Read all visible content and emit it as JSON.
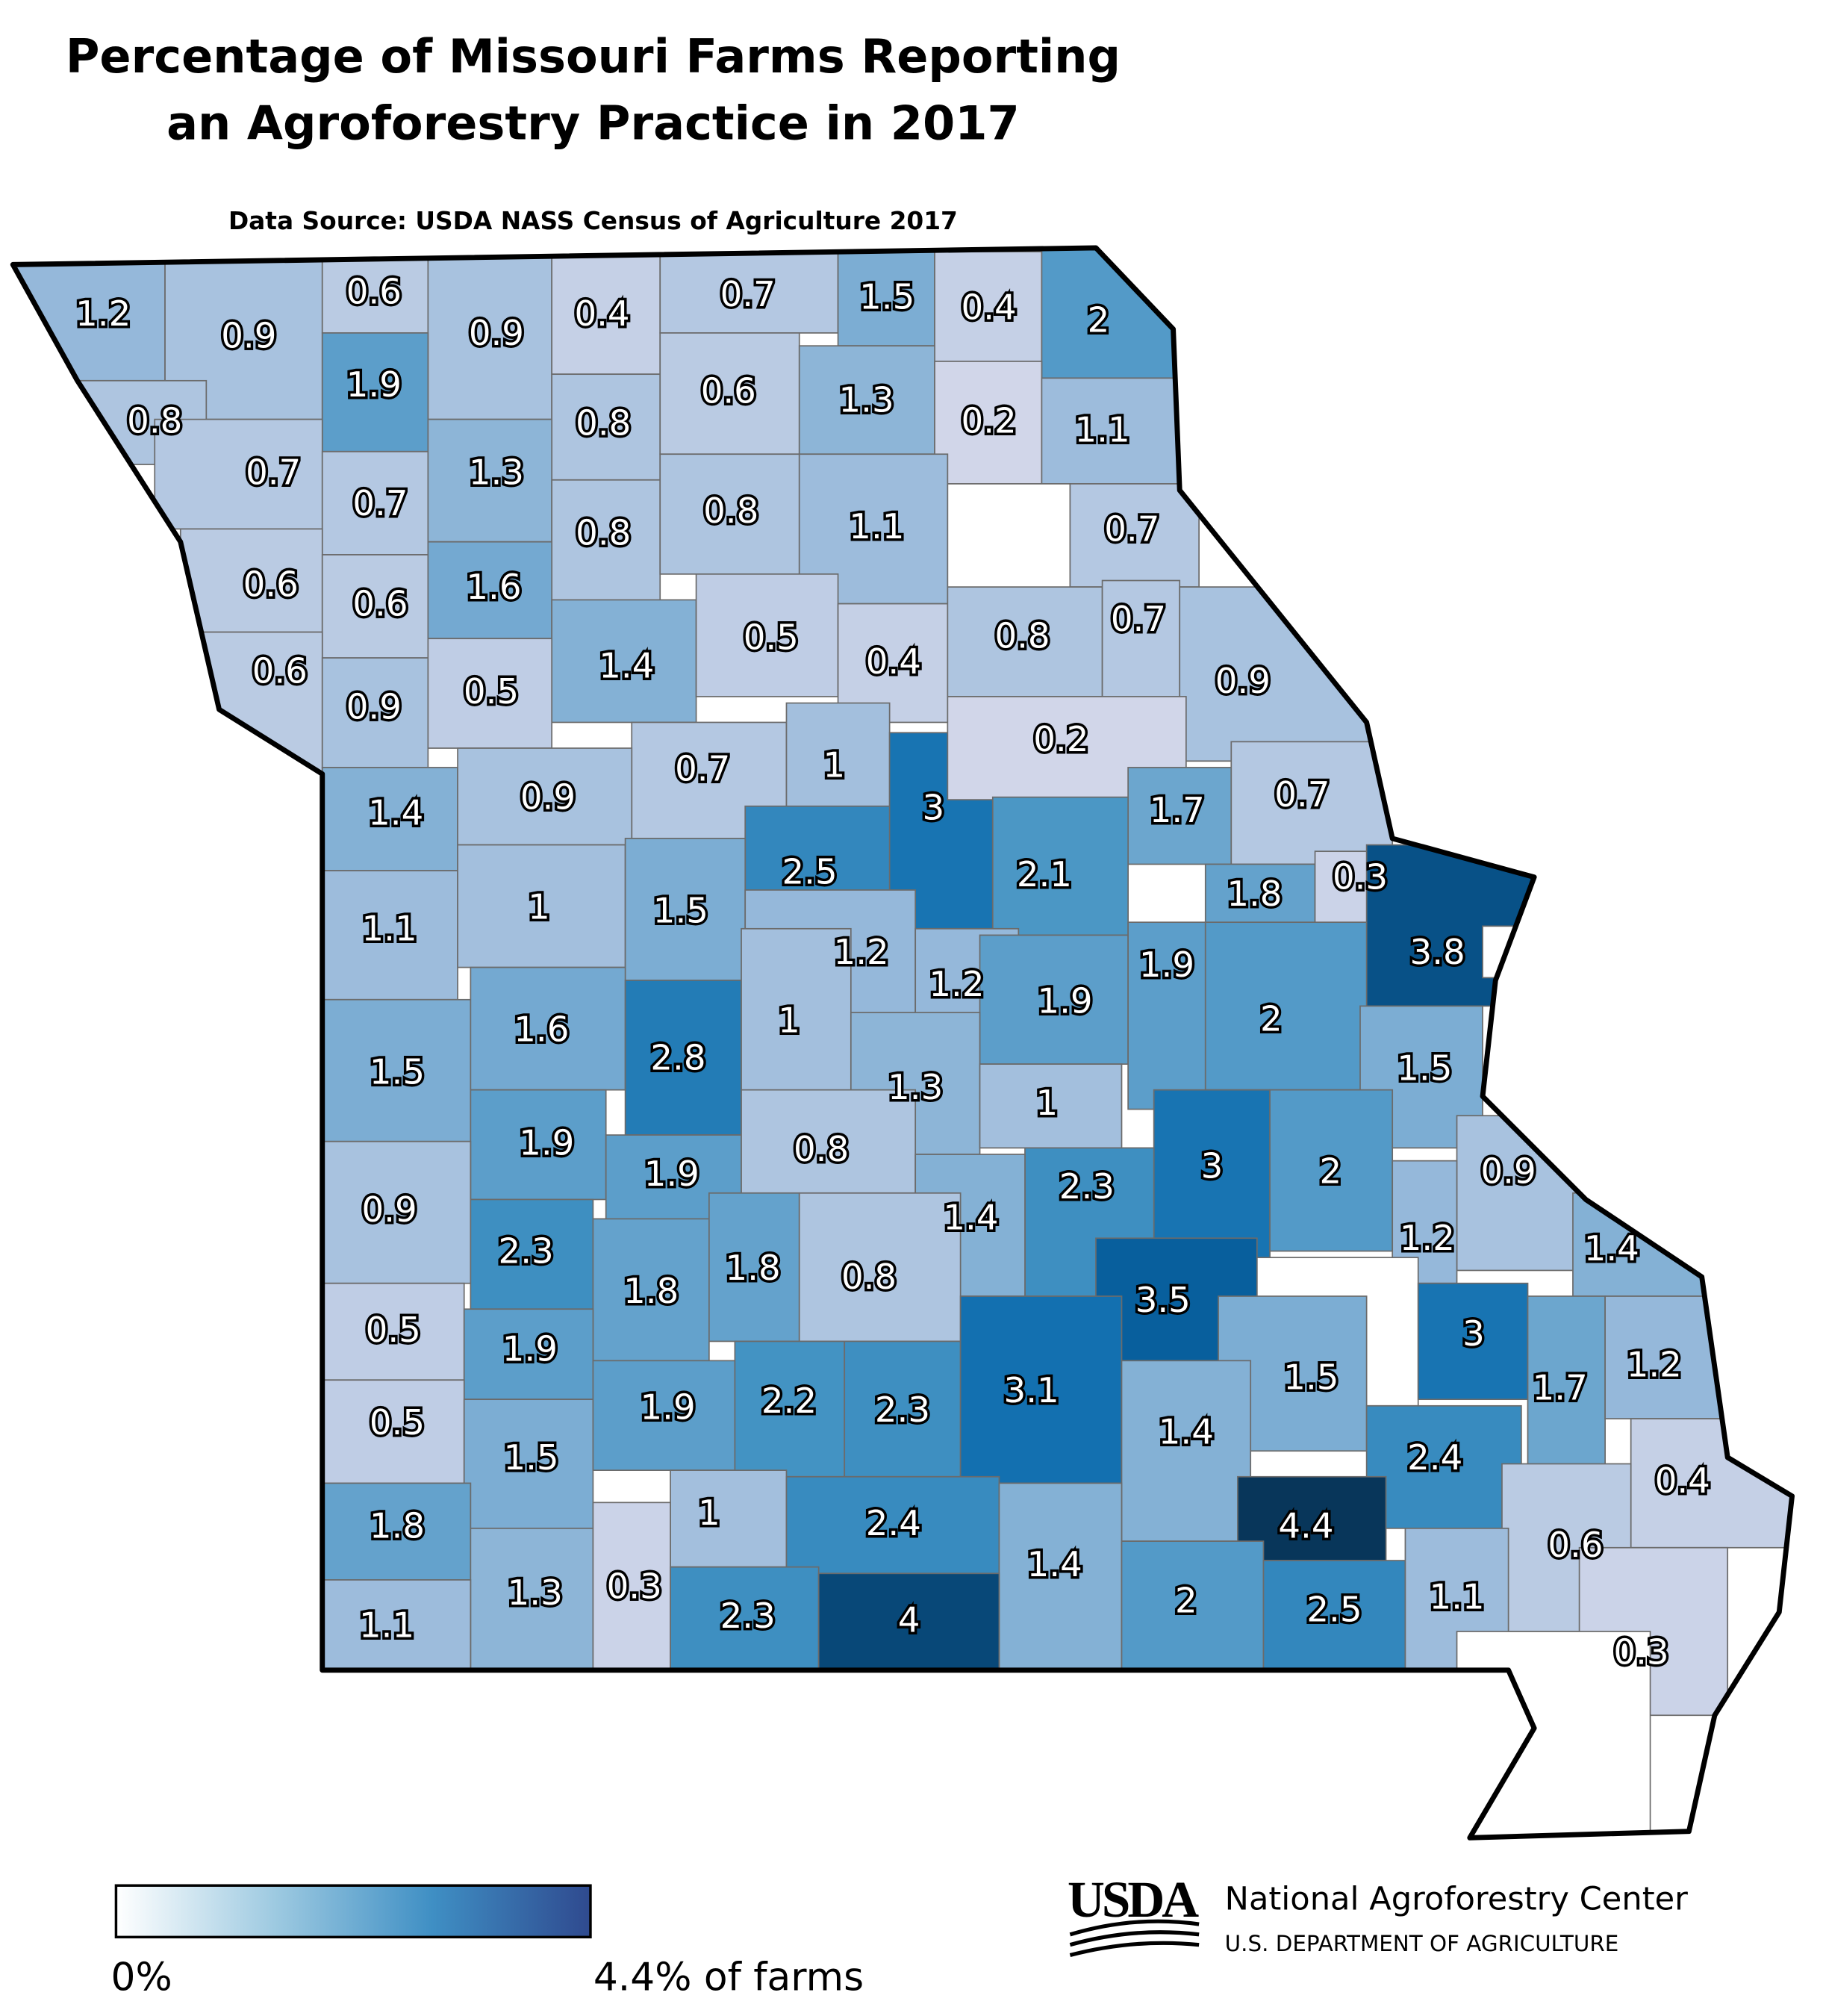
{
  "chart_data": {
    "type": "choropleth",
    "title": [
      "Percentage of Missouri Farms Reporting",
      "an Agroforestry Practice in 2017"
    ],
    "subtitle": "Data Source: USDA NASS Census of Agriculture 2017",
    "values": [
      1.2,
      0.9,
      0.6,
      0.9,
      0.4,
      0.7,
      1.5,
      0.4,
      2,
      0.8,
      1.9,
      0.8,
      0.6,
      1.3,
      0.2,
      1.1,
      0.7,
      0.7,
      1.3,
      0.8,
      0.8,
      1.1,
      null,
      0.7,
      0.6,
      0.6,
      1.6,
      1.4,
      0.5,
      0.4,
      0.8,
      0.7,
      0.6,
      0.9,
      0.5,
      0.9,
      0.7,
      1,
      3,
      0.2,
      1.4,
      0.9,
      1.7,
      0.7,
      2.5,
      2.1,
      1.8,
      0.3,
      1.1,
      1,
      1.5,
      3.8,
      null,
      1.2,
      1.2,
      1.9,
      1.9,
      2,
      1.5,
      1.6,
      2.8,
      1,
      1.3,
      1,
      1.5,
      1.9,
      1.9,
      0.8,
      3,
      2,
      0.9,
      2.3,
      1.4,
      0.9,
      1.2,
      1.4,
      2.3,
      1.8,
      1.8,
      0.8,
      3.5,
      null,
      3,
      1.7,
      1.2,
      0.5,
      1.9,
      1.5,
      0.5,
      1.5,
      1.9,
      2.2,
      2.3,
      3.1,
      1.4,
      2.4,
      1.8,
      1,
      2.4,
      0.4,
      0.6,
      1.4,
      4.4,
      1.3,
      0.3,
      2.3,
      4,
      2,
      2.5,
      1.1,
      1.1,
      0.3,
      null
    ],
    "colorscale": [
      "#dcdcec",
      "#9dbcdc",
      "#4393c3",
      "#0868ac",
      "#08365a"
    ],
    "null_color": "#ffffff",
    "legend": {
      "colors": [
        "#ffffff",
        "#9ecae1",
        "#3f8fc4",
        "#2f4a8f"
      ],
      "ticks": [
        {
          "value": 0,
          "label": "0%"
        },
        {
          "value": 4.4,
          "label": "4.4% of farms"
        }
      ]
    }
  },
  "footer": {
    "logo": "USDA",
    "organization": "National Agroforestry Center",
    "department": "U.S. DEPARTMENT OF AGRICULTURE"
  }
}
